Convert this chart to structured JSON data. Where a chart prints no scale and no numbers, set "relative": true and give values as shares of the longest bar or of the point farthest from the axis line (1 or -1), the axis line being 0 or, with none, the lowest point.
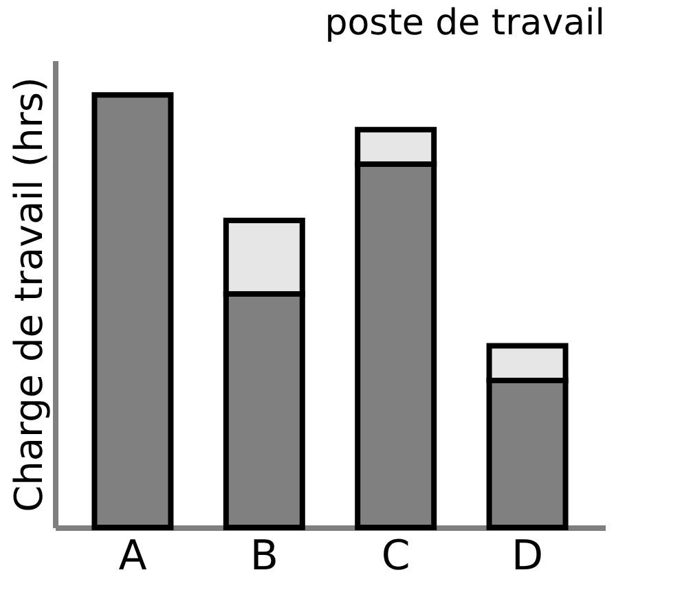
{
  "chart_data": {
    "type": "bar",
    "title": "poste de travail",
    "ylabel": "Charge de travail (hrs)",
    "relative": true,
    "stacked": true,
    "categories": [
      "A",
      "B",
      "C",
      "D"
    ],
    "series": [
      {
        "color": "#808080",
        "values": [
          1.0,
          0.54,
          0.84,
          0.34
        ]
      },
      {
        "color": "#e6e6e6",
        "values": [
          null,
          0.17,
          0.08,
          0.08
        ]
      }
    ],
    "grid": false,
    "legend": false
  }
}
